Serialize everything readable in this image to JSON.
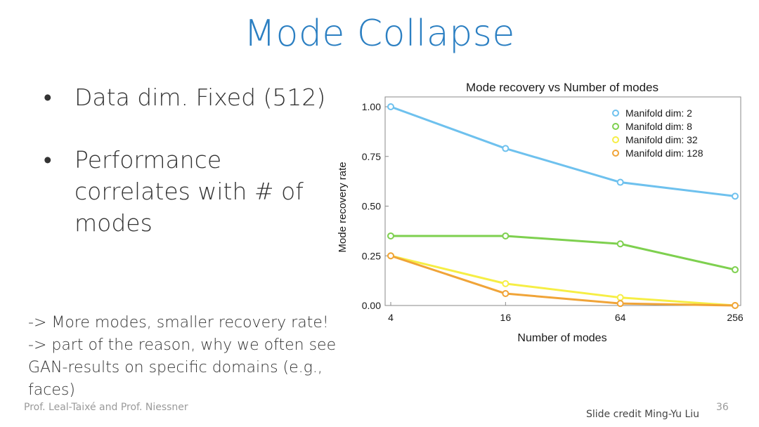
{
  "slide": {
    "title": "Mode Collapse",
    "bullets": [
      {
        "text": "Data dim. Fixed (512)"
      },
      {
        "text": "Performance correlates with # of modes"
      }
    ],
    "note_lines": [
      "-> More modes, smaller recovery rate!",
      "-> part of the reason, why we often see",
      "GAN-results on specific domains (e.g.,",
      "faces)"
    ],
    "footer_left": "Prof. Leal-Taixé and Prof. Niessner",
    "footer_right": "Slide credit Ming-Yu Liu",
    "page_number": "36"
  },
  "chart_data": {
    "type": "line",
    "title": "Mode recovery vs Number of modes",
    "xlabel": "Number of modes",
    "ylabel": "Mode recovery rate",
    "x": [
      4,
      16,
      64,
      256
    ],
    "x_tick_labels": [
      "4",
      "16",
      "64",
      "256"
    ],
    "y_ticks": [
      0,
      0.25,
      0.5,
      0.75,
      1.0
    ],
    "y_tick_labels": [
      "0.00",
      "0.25",
      "0.50",
      "0.75",
      "1.00"
    ],
    "ylim": [
      0,
      1.0
    ],
    "x_scale": "log2",
    "legend_position": "top-right",
    "grid": false,
    "series": [
      {
        "name": "Manifold dim: 2",
        "color": "#6ec1ee",
        "values": [
          1.0,
          0.79,
          0.62,
          0.55
        ]
      },
      {
        "name": "Manifold dim: 8",
        "color": "#7ed04f",
        "values": [
          0.35,
          0.35,
          0.31,
          0.18
        ]
      },
      {
        "name": "Manifold dim: 32",
        "color": "#f6ee45",
        "values": [
          0.25,
          0.11,
          0.04,
          0.0
        ]
      },
      {
        "name": "Manifold dim: 128",
        "color": "#f0a438",
        "values": [
          0.25,
          0.06,
          0.01,
          0.0
        ]
      }
    ]
  }
}
